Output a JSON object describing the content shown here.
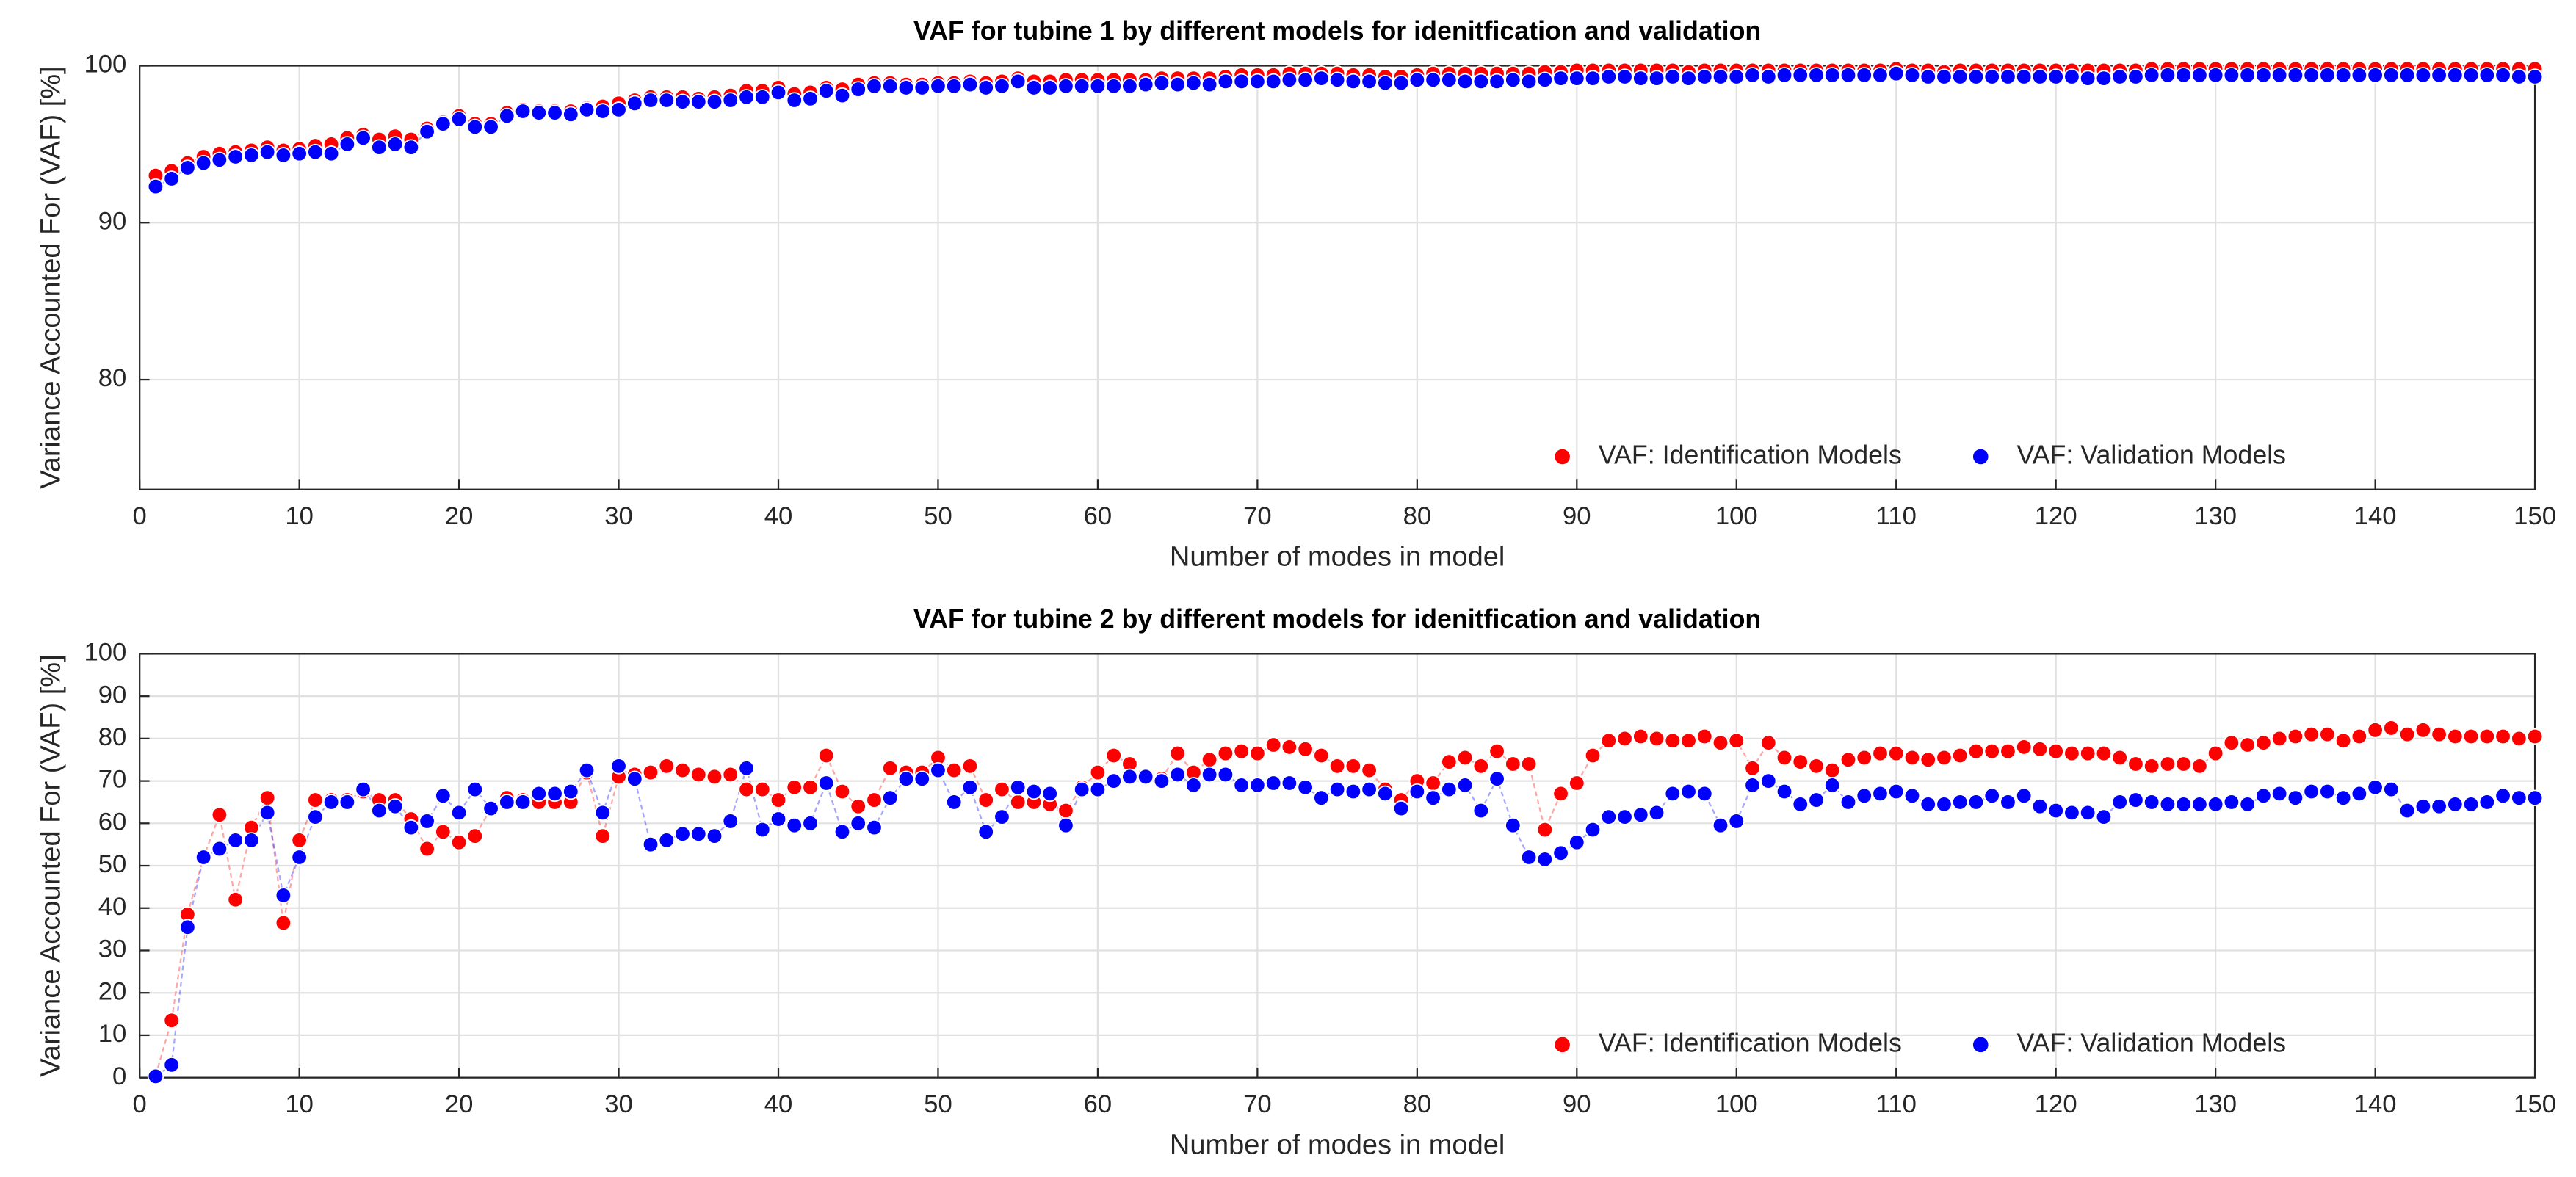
{
  "chart_data": [
    {
      "type": "line",
      "title": "VAF for tubine 1 by different models for idenitfication and validation",
      "xlabel": "Number of modes in model",
      "ylabel": "Variance Accounted For (VAF) [%]",
      "xlim": [
        0,
        150
      ],
      "xticks": [
        0,
        10,
        20,
        30,
        40,
        50,
        60,
        70,
        80,
        90,
        100,
        110,
        120,
        130,
        140,
        150
      ],
      "ylim": [
        73,
        100
      ],
      "yticks": [
        80,
        90,
        100
      ],
      "grid": true,
      "legend": "lower right",
      "x": [
        1,
        2,
        3,
        4,
        5,
        6,
        7,
        8,
        9,
        10,
        11,
        12,
        13,
        14,
        15,
        16,
        17,
        18,
        19,
        20,
        21,
        22,
        23,
        24,
        25,
        26,
        27,
        28,
        29,
        30,
        31,
        32,
        33,
        34,
        35,
        36,
        37,
        38,
        39,
        40,
        41,
        42,
        43,
        44,
        45,
        46,
        47,
        48,
        49,
        50,
        51,
        52,
        53,
        54,
        55,
        56,
        57,
        58,
        59,
        60,
        61,
        62,
        63,
        64,
        65,
        66,
        67,
        68,
        69,
        70,
        71,
        72,
        73,
        74,
        75,
        76,
        77,
        78,
        79,
        80,
        81,
        82,
        83,
        84,
        85,
        86,
        87,
        88,
        89,
        90,
        91,
        92,
        93,
        94,
        95,
        96,
        97,
        98,
        99,
        100,
        101,
        102,
        103,
        104,
        105,
        106,
        107,
        108,
        109,
        110,
        111,
        112,
        113,
        114,
        115,
        116,
        117,
        118,
        119,
        120,
        121,
        122,
        123,
        124,
        125,
        126,
        127,
        128,
        129,
        130,
        131,
        132,
        133,
        134,
        135,
        136,
        137,
        138,
        139,
        140,
        141,
        142,
        143,
        144,
        145,
        146,
        147,
        148,
        149,
        150
      ],
      "series": [
        {
          "name": "VAF: Identification Models",
          "color": "#ff0000",
          "values": [
            93,
            93.3,
            93.8,
            94.2,
            94.4,
            94.5,
            94.6,
            94.8,
            94.6,
            94.7,
            94.9,
            95,
            95.4,
            95.6,
            95.3,
            95.5,
            95.3,
            96,
            96.4,
            96.8,
            96.3,
            96.3,
            97,
            97.2,
            97.1,
            97.1,
            97.1,
            97.3,
            97.4,
            97.6,
            97.8,
            98,
            98,
            98,
            97.9,
            98,
            98.1,
            98.4,
            98.4,
            98.6,
            98.2,
            98.3,
            98.6,
            98.5,
            98.8,
            98.9,
            98.9,
            98.8,
            98.8,
            98.9,
            98.9,
            99,
            98.9,
            99,
            99.2,
            99,
            99,
            99.1,
            99.1,
            99.1,
            99.1,
            99.1,
            99.1,
            99.2,
            99.2,
            99.2,
            99.2,
            99.3,
            99.4,
            99.4,
            99.4,
            99.5,
            99.5,
            99.5,
            99.5,
            99.4,
            99.4,
            99.3,
            99.3,
            99.4,
            99.5,
            99.5,
            99.5,
            99.5,
            99.5,
            99.5,
            99.5,
            99.6,
            99.6,
            99.7,
            99.7,
            99.7,
            99.7,
            99.7,
            99.7,
            99.7,
            99.6,
            99.7,
            99.7,
            99.7,
            99.7,
            99.7,
            99.7,
            99.7,
            99.7,
            99.7,
            99.7,
            99.7,
            99.7,
            99.8,
            99.7,
            99.7,
            99.6,
            99.7,
            99.7,
            99.7,
            99.7,
            99.7,
            99.7,
            99.7,
            99.7,
            99.7,
            99.7,
            99.7,
            99.7,
            99.8,
            99.8,
            99.8,
            99.8,
            99.8,
            99.8,
            99.8,
            99.8,
            99.8,
            99.8,
            99.8,
            99.8,
            99.8,
            99.8,
            99.8,
            99.8,
            99.8,
            99.8,
            99.8,
            99.8,
            99.8,
            99.8,
            99.8,
            99.8,
            99.8
          ]
        },
        {
          "name": "VAF: Validation Models",
          "color": "#0000ff",
          "values": [
            92.3,
            92.8,
            93.5,
            93.8,
            94,
            94.2,
            94.3,
            94.5,
            94.3,
            94.4,
            94.5,
            94.4,
            95,
            95.4,
            94.8,
            95,
            94.8,
            95.8,
            96.3,
            96.6,
            96.1,
            96.1,
            96.8,
            97.1,
            97,
            97,
            96.9,
            97.2,
            97.1,
            97.2,
            97.6,
            97.8,
            97.8,
            97.7,
            97.7,
            97.7,
            97.8,
            98,
            98,
            98.3,
            97.8,
            97.9,
            98.4,
            98.1,
            98.5,
            98.7,
            98.7,
            98.6,
            98.6,
            98.7,
            98.7,
            98.8,
            98.6,
            98.7,
            99,
            98.6,
            98.6,
            98.7,
            98.7,
            98.7,
            98.7,
            98.7,
            98.8,
            98.9,
            98.8,
            98.9,
            98.8,
            99,
            99,
            99,
            99,
            99.1,
            99.1,
            99.2,
            99.1,
            99,
            99,
            98.9,
            98.9,
            99.1,
            99.1,
            99.1,
            99,
            99,
            99,
            99.1,
            99,
            99.1,
            99.2,
            99.2,
            99.2,
            99.3,
            99.3,
            99.2,
            99.2,
            99.3,
            99.2,
            99.3,
            99.3,
            99.3,
            99.4,
            99.3,
            99.4,
            99.4,
            99.4,
            99.4,
            99.4,
            99.4,
            99.4,
            99.5,
            99.4,
            99.3,
            99.3,
            99.3,
            99.3,
            99.3,
            99.3,
            99.3,
            99.3,
            99.3,
            99.3,
            99.2,
            99.2,
            99.3,
            99.3,
            99.4,
            99.4,
            99.4,
            99.4,
            99.4,
            99.4,
            99.4,
            99.4,
            99.4,
            99.4,
            99.4,
            99.4,
            99.4,
            99.4,
            99.4,
            99.4,
            99.4,
            99.4,
            99.4,
            99.4,
            99.4,
            99.4,
            99.4,
            99.3,
            99.3
          ]
        }
      ]
    },
    {
      "type": "line",
      "title": "VAF for tubine 2 by different models for idenitfication and validation",
      "xlabel": "Number of modes in model",
      "ylabel": "Variance Accounted For (VAF) [%]",
      "xlim": [
        0,
        150
      ],
      "xticks": [
        0,
        10,
        20,
        30,
        40,
        50,
        60,
        70,
        80,
        90,
        100,
        110,
        120,
        130,
        140,
        150
      ],
      "ylim": [
        0,
        100
      ],
      "yticks": [
        0,
        10,
        20,
        30,
        40,
        50,
        60,
        70,
        80,
        90,
        100
      ],
      "grid": true,
      "legend": "lower right",
      "x": [
        1,
        2,
        3,
        4,
        5,
        6,
        7,
        8,
        9,
        10,
        11,
        12,
        13,
        14,
        15,
        16,
        17,
        18,
        19,
        20,
        21,
        22,
        23,
        24,
        25,
        26,
        27,
        28,
        29,
        30,
        31,
        32,
        33,
        34,
        35,
        36,
        37,
        38,
        39,
        40,
        41,
        42,
        43,
        44,
        45,
        46,
        47,
        48,
        49,
        50,
        51,
        52,
        53,
        54,
        55,
        56,
        57,
        58,
        59,
        60,
        61,
        62,
        63,
        64,
        65,
        66,
        67,
        68,
        69,
        70,
        71,
        72,
        73,
        74,
        75,
        76,
        77,
        78,
        79,
        80,
        81,
        82,
        83,
        84,
        85,
        86,
        87,
        88,
        89,
        90,
        91,
        92,
        93,
        94,
        95,
        96,
        97,
        98,
        99,
        100,
        101,
        102,
        103,
        104,
        105,
        106,
        107,
        108,
        109,
        110,
        111,
        112,
        113,
        114,
        115,
        116,
        117,
        118,
        119,
        120,
        121,
        122,
        123,
        124,
        125,
        126,
        127,
        128,
        129,
        130,
        131,
        132,
        133,
        134,
        135,
        136,
        137,
        138,
        139,
        140,
        141,
        142,
        143,
        144,
        145,
        146,
        147,
        148,
        149,
        150
      ],
      "series": [
        {
          "name": "VAF: Identification Models",
          "color": "#ff0000",
          "values": [
            0.5,
            13.5,
            38.5,
            52,
            62,
            42,
            59,
            66,
            36.5,
            56,
            65.5,
            65.5,
            65.5,
            67.5,
            65.5,
            65.5,
            61,
            54,
            58,
            55.5,
            57,
            63.5,
            66,
            65.5,
            65,
            65,
            65,
            72,
            57,
            71,
            71.5,
            72,
            73.5,
            72.5,
            71.5,
            71,
            71.5,
            68,
            68,
            65.5,
            68.5,
            68.5,
            76,
            67.5,
            64,
            65.5,
            73,
            72,
            72,
            75.5,
            72.5,
            73.5,
            65.5,
            68,
            65,
            65,
            64.5,
            63,
            68.5,
            72,
            76,
            74,
            71,
            70.5,
            76.5,
            72,
            75,
            76.5,
            77,
            76.5,
            78.5,
            78,
            77.5,
            76,
            73.5,
            73.5,
            72.5,
            68,
            65.5,
            70,
            69.5,
            74.5,
            75.5,
            73.5,
            77,
            74,
            74,
            58.5,
            67,
            69.5,
            76,
            79.5,
            80,
            80.5,
            80,
            79.5,
            79.5,
            80.5,
            79,
            79.5,
            73,
            79,
            75.5,
            74.5,
            73.5,
            72.5,
            75,
            75.5,
            76.5,
            76.5,
            75.5,
            75,
            75.5,
            76,
            77,
            77,
            77,
            78,
            77.5,
            77,
            76.5,
            76.5,
            76.5,
            75.5,
            74,
            73.5,
            74,
            74,
            73.5,
            76.5,
            79,
            78.5,
            79,
            80,
            80.5,
            81,
            81,
            79.5,
            80.5,
            82,
            82.5,
            81,
            82,
            81,
            80.5,
            80.5,
            80.5,
            80.5,
            80,
            80.5
          ]
        },
        {
          "name": "VAF: Validation Models",
          "color": "#0000ff",
          "values": [
            0.3,
            3,
            35.5,
            52,
            54,
            56,
            56,
            62.5,
            43,
            52,
            61.5,
            65,
            65,
            68,
            63,
            64,
            59,
            60.5,
            66.5,
            62.5,
            68,
            63.5,
            65,
            65,
            67,
            67,
            67.5,
            72.5,
            62.5,
            73.5,
            70.5,
            55,
            56,
            57.5,
            57.5,
            57,
            60.5,
            73,
            58.5,
            61,
            59.5,
            60,
            69.5,
            58,
            60,
            59,
            66,
            70.5,
            70.5,
            72.5,
            65,
            68.5,
            58,
            61.5,
            68.5,
            67.5,
            67,
            59.5,
            68,
            68,
            70,
            71,
            71,
            70,
            71.5,
            69,
            71.5,
            71.5,
            69,
            69,
            69.5,
            69.5,
            68.5,
            66,
            68,
            67.5,
            68,
            67,
            63.5,
            67.5,
            66,
            68,
            69,
            63,
            70.5,
            59.5,
            52,
            51.5,
            53,
            55.5,
            58.5,
            61.5,
            61.5,
            62,
            62.5,
            67,
            67.5,
            67,
            59.5,
            60.5,
            69,
            70,
            67.5,
            64.5,
            65.5,
            69,
            65,
            66.5,
            67,
            67.5,
            66.5,
            64.5,
            64.5,
            65,
            65,
            66.5,
            65,
            66.5,
            64,
            63,
            62.5,
            62.5,
            61.5,
            65,
            65.5,
            65,
            64.5,
            64.5,
            64.5,
            64.5,
            65,
            64.5,
            66.5,
            67,
            66,
            67.5,
            67.5,
            66,
            67,
            68.5,
            68,
            63,
            64,
            64,
            64.5,
            64.5,
            65,
            66.5,
            66,
            66
          ]
        }
      ]
    }
  ]
}
